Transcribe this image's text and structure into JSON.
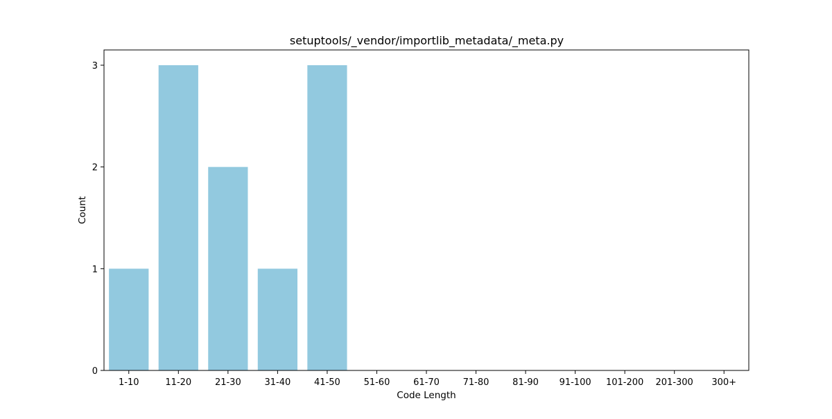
{
  "chart_data": {
    "type": "bar",
    "title": "setuptools/_vendor/importlib_metadata/_meta.py",
    "xlabel": "Code Length",
    "ylabel": "Count",
    "categories": [
      "1-10",
      "11-20",
      "21-30",
      "31-40",
      "41-50",
      "51-60",
      "61-70",
      "71-80",
      "81-90",
      "91-100",
      "101-200",
      "201-300",
      "300+"
    ],
    "values": [
      1,
      3,
      2,
      1,
      3,
      0,
      0,
      0,
      0,
      0,
      0,
      0,
      0
    ],
    "ylim": [
      0,
      3.15
    ],
    "yticks": [
      0,
      1,
      2,
      3
    ],
    "grid": false,
    "bar_color": "#92c9df"
  }
}
